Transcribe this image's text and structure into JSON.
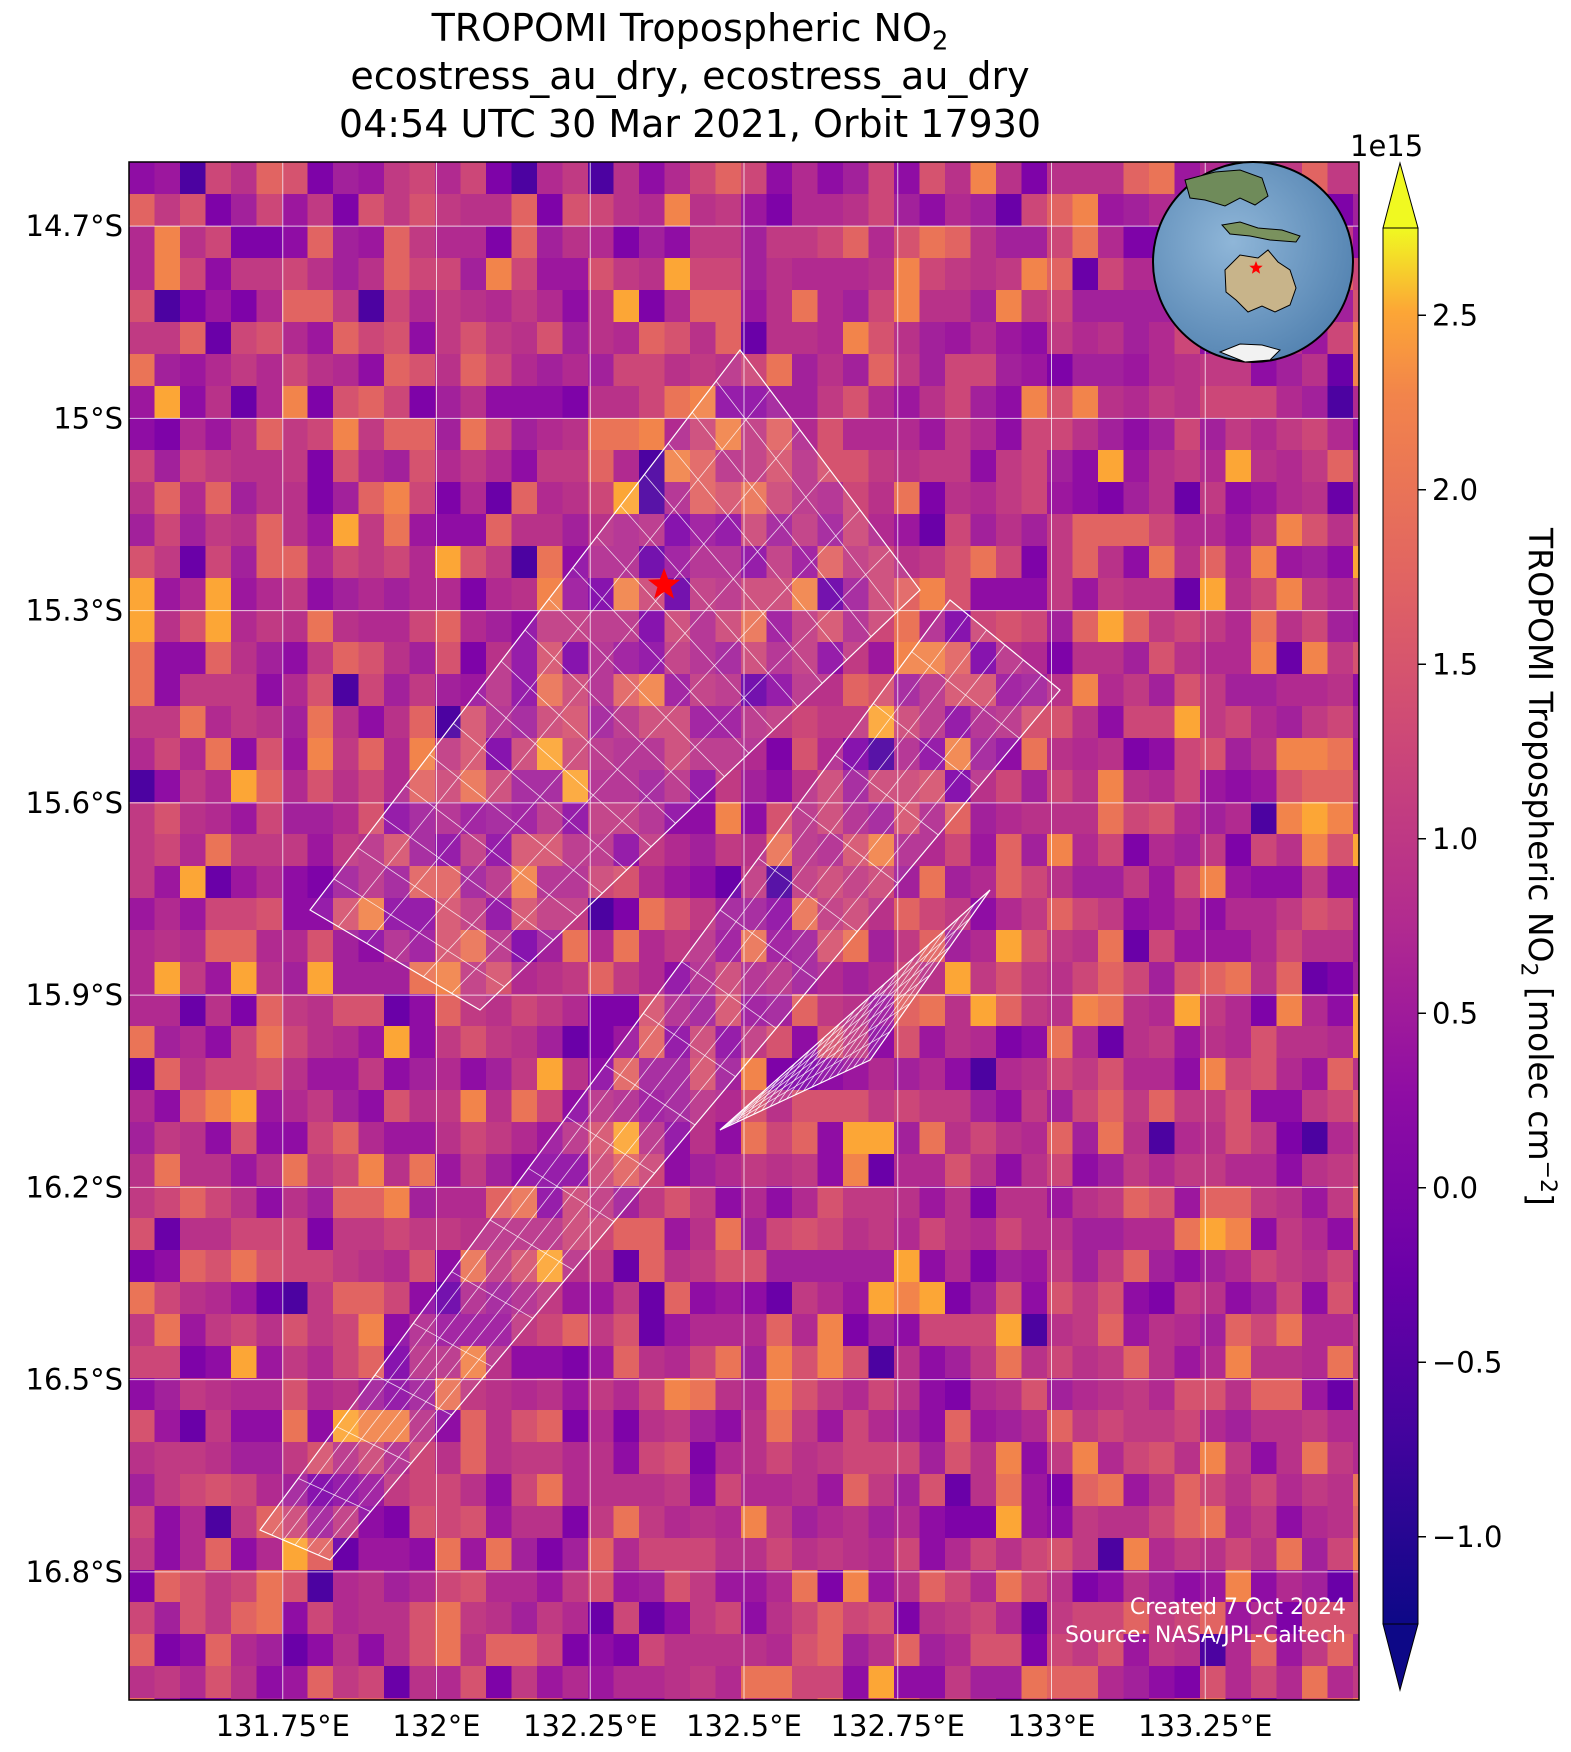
{
  "header": {
    "title_line1_main": "TROPOMI Tropospheric NO",
    "title_line1_sub": "2",
    "title_line2": "ecostress_au_dry, ecostress_au_dry",
    "title_line3": "04:54 UTC 30 Mar 2021, Orbit 17930"
  },
  "map": {
    "lat_ticks": [
      {
        "value": -14.7,
        "label": "14.7°S"
      },
      {
        "value": -15.0,
        "label": "15°S"
      },
      {
        "value": -15.3,
        "label": "15.3°S"
      },
      {
        "value": -15.6,
        "label": "15.6°S"
      },
      {
        "value": -15.9,
        "label": "15.9°S"
      },
      {
        "value": -16.2,
        "label": "16.2°S"
      },
      {
        "value": -16.5,
        "label": "16.5°S"
      },
      {
        "value": -16.8,
        "label": "16.8°S"
      }
    ],
    "lon_ticks": [
      {
        "value": 131.75,
        "label": "131.75°E"
      },
      {
        "value": 132.0,
        "label": "132°E"
      },
      {
        "value": 132.25,
        "label": "132.25°E"
      },
      {
        "value": 132.5,
        "label": "132.5°E"
      },
      {
        "value": 132.75,
        "label": "132.75°E"
      },
      {
        "value": 133.0,
        "label": "133°E"
      },
      {
        "value": 133.25,
        "label": "133.25°E"
      }
    ],
    "extent": {
      "lon_min": 131.5,
      "lon_max": 133.5,
      "lat_max": -14.6,
      "lat_min": -17.0
    },
    "target_marker": {
      "lon": 132.37,
      "lat": -15.26,
      "color": "#ff0000",
      "symbol": "star"
    },
    "inset_globe": {
      "region": "Australia",
      "marker_color": "#ff0000"
    },
    "overlay_color": "#ffffff"
  },
  "colorbar": {
    "exponent_label": "1e15",
    "label_main": "TROPOMI Tropospheric NO",
    "label_sub": "2",
    "label_unit": " [molec cm",
    "label_sup": "−2",
    "label_end": "]",
    "colormap": "plasma",
    "vmin": -1.25,
    "vmax": 2.75,
    "extend": "both",
    "ticks": [
      {
        "value": -1.0,
        "label": "−1.0"
      },
      {
        "value": -0.5,
        "label": "−0.5"
      },
      {
        "value": 0.0,
        "label": "0.0"
      },
      {
        "value": 0.5,
        "label": "0.5"
      },
      {
        "value": 1.0,
        "label": "1.0"
      },
      {
        "value": 1.5,
        "label": "1.5"
      },
      {
        "value": 2.0,
        "label": "2.0"
      },
      {
        "value": 2.5,
        "label": "2.5"
      }
    ]
  },
  "footer": {
    "created": "Created 7 Oct 2024",
    "source": "Source: NASA/JPL-Caltech"
  }
}
